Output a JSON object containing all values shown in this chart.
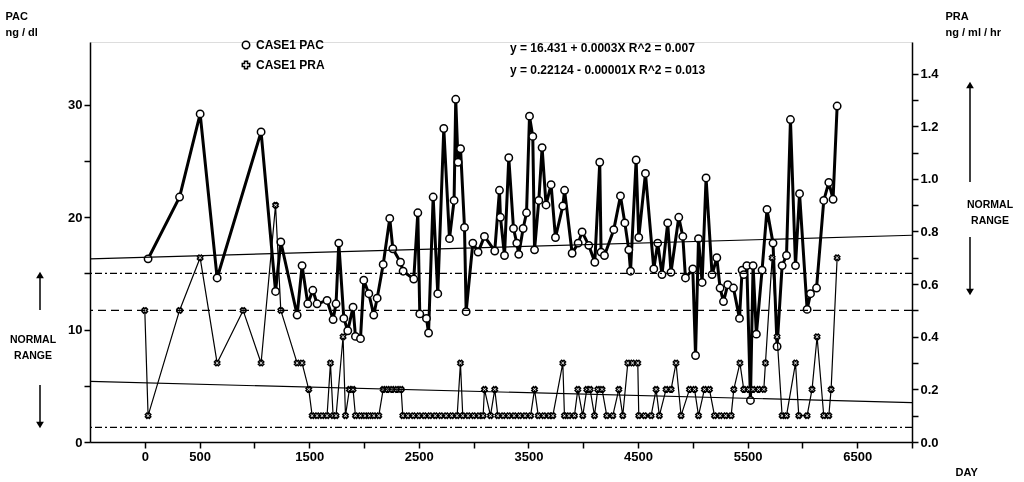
{
  "chart_data": {
    "type": "line",
    "xlabel": "DAY",
    "ylabel": "PAC\nng / dl",
    "y2label": "PRA\nng / ml / hr",
    "xlim": [
      -500,
      7000
    ],
    "xticks": [
      0,
      500,
      {
        "value": 1000,
        "label": null
      },
      1500,
      {
        "value": 2000,
        "label": null
      },
      2500,
      {
        "value": 3000,
        "label": null
      },
      3500,
      {
        "value": 4000,
        "label": null
      },
      4500,
      {
        "value": 5000,
        "label": null
      },
      5500,
      {
        "value": 6000,
        "label": null
      },
      6500,
      {
        "value": 7000,
        "label": null
      }
    ],
    "ylim": [
      0,
      35.6
    ],
    "yticks": [
      0,
      {
        "value": 5,
        "label": null
      },
      10,
      {
        "value": 15,
        "label": null
      },
      20,
      {
        "value": 25,
        "label": null
      },
      30
    ],
    "y2lim": [
      0,
      1.52
    ],
    "y2ticks": [
      {
        "value": 0,
        "label": "0.0"
      },
      {
        "value": 0.1,
        "label": null
      },
      {
        "value": 0.2,
        "label": "0.2"
      },
      {
        "value": 0.3,
        "label": null
      },
      {
        "value": 0.4,
        "label": "0.4"
      },
      {
        "value": 0.5,
        "label": null
      },
      {
        "value": 0.6,
        "label": "0.6"
      },
      {
        "value": 0.7,
        "label": null
      },
      {
        "value": 0.8,
        "label": "0.8"
      },
      {
        "value": 0.9,
        "label": null
      },
      {
        "value": 1.0,
        "label": "1.0"
      },
      {
        "value": 1.1,
        "label": null
      },
      {
        "value": 1.2,
        "label": "1.2"
      },
      {
        "value": 1.3,
        "label": null
      },
      {
        "value": 1.4,
        "label": "1.4"
      }
    ],
    "grid": false,
    "legend": "top left",
    "series": [
      {
        "name": "CASE1 PAC",
        "color": "#000000",
        "marker": "circle",
        "x": [
          30,
          317,
          505,
          660,
          1061,
          1193,
          1241,
          1390,
          1435,
          1487,
          1533,
          1572,
          1663,
          1718,
          1745,
          1770,
          1816,
          1852,
          1900,
          1922,
          1968,
          1998,
          2044,
          2089,
          2120,
          2175,
          2235,
          2263,
          2333,
          2357,
          2454,
          2491,
          2509,
          2570,
          2589,
          2631,
          2673,
          2728,
          2780,
          2822,
          2837,
          2858,
          2881,
          2917,
          2932,
          2993,
          3041,
          3099,
          3193,
          3236,
          3245,
          3282,
          3321,
          3364,
          3394,
          3412,
          3452,
          3483,
          3510,
          3540,
          3556,
          3595,
          3625,
          3661,
          3707,
          3747,
          3814,
          3830,
          3899,
          3954,
          3990,
          4051,
          4106,
          4151,
          4163,
          4194,
          4279,
          4340,
          4380,
          4416,
          4432,
          4483,
          4507,
          4568,
          4644,
          4680,
          4719,
          4771,
          4801,
          4872,
          4909,
          4933,
          5000,
          5025,
          5052,
          5085,
          5121,
          5176,
          5219,
          5249,
          5280,
          5319,
          5371,
          5426,
          5450,
          5465,
          5493,
          5526,
          5550,
          5580,
          5632,
          5677,
          5732,
          5769,
          5815,
          5855,
          5891,
          5937,
          5974,
          6043,
          6074,
          6129,
          6195,
          6241,
          6280,
          6317
        ],
        "values": [
          16.3,
          21.8,
          29.2,
          14.6,
          27.6,
          13.4,
          17.8,
          11.3,
          15.7,
          12.3,
          13.5,
          12.3,
          12.6,
          10.9,
          12.3,
          17.7,
          11.0,
          9.9,
          12.0,
          9.4,
          9.2,
          14.4,
          13.2,
          11.3,
          12.8,
          15.8,
          19.9,
          17.2,
          16.0,
          15.2,
          14.5,
          20.4,
          11.4,
          11.0,
          9.7,
          21.8,
          13.2,
          27.9,
          18.1,
          21.5,
          30.5,
          24.9,
          26.1,
          19.1,
          11.6,
          17.7,
          16.9,
          18.3,
          17.0,
          22.4,
          20.0,
          16.6,
          25.3,
          19.0,
          17.7,
          16.7,
          19.0,
          20.4,
          29.0,
          27.2,
          17.1,
          21.5,
          26.2,
          21.1,
          22.9,
          18.2,
          21.0,
          22.4,
          16.8,
          17.7,
          18.7,
          17.5,
          16.0,
          24.9,
          16.9,
          16.6,
          18.9,
          21.9,
          19.5,
          17.1,
          15.2,
          25.1,
          18.2,
          23.9,
          15.4,
          17.7,
          14.9,
          19.5,
          15.1,
          20.0,
          18.3,
          14.6,
          15.4,
          7.7,
          18.1,
          14.2,
          23.5,
          14.9,
          16.4,
          13.7,
          12.5,
          14.0,
          13.7,
          11.0,
          15.3,
          14.9,
          15.7,
          3.7,
          15.7,
          9.6,
          15.3,
          20.7,
          17.7,
          8.5,
          15.7,
          16.6,
          28.7,
          15.7,
          22.1,
          11.8,
          13.2,
          13.7,
          21.5,
          23.1,
          21.6,
          29.9
        ]
      },
      {
        "name": "CASE1 PRA",
        "color": "#000000",
        "marker": "cross",
        "axis": "y2",
        "x": [
          0,
          30,
          317,
          505,
          660,
          897,
          1061,
          1193,
          1241,
          1390,
          1435,
          1496,
          1527,
          1572,
          1618,
          1663,
          1694,
          1718,
          1745,
          1809,
          1831,
          1867,
          1900,
          1922,
          1968,
          2010,
          2050,
          2090,
          2135,
          2175,
          2215,
          2257,
          2300,
          2339,
          2354,
          2400,
          2450,
          2500,
          2550,
          2600,
          2650,
          2700,
          2750,
          2800,
          2850,
          2880,
          2901,
          2950,
          3000,
          3050,
          3087,
          3099,
          3154,
          3193,
          3221,
          3270,
          3320,
          3370,
          3420,
          3470,
          3520,
          3556,
          3590,
          3640,
          3690,
          3723,
          3814,
          3829,
          3870,
          3920,
          3951,
          3996,
          4033,
          4063,
          4103,
          4133,
          4172,
          4215,
          4270,
          4325,
          4361,
          4407,
          4450,
          4498,
          4507,
          4560,
          4620,
          4665,
          4695,
          4756,
          4802,
          4847,
          4893,
          4970,
          5016,
          5052,
          5106,
          5152,
          5198,
          5250,
          5300,
          5350,
          5374,
          5430,
          5465,
          5510,
          5550,
          5600,
          5648,
          5663,
          5724,
          5769,
          5815,
          5855,
          5937,
          5967,
          6043,
          6088,
          6134,
          6195,
          6241,
          6262,
          6317
        ],
        "values": [
          0.5,
          0.1,
          0.5,
          0.7,
          0.3,
          0.5,
          0.3,
          0.9,
          0.5,
          0.3,
          0.3,
          0.2,
          0.1,
          0.1,
          0.1,
          0.1,
          0.3,
          0.1,
          0.1,
          0.4,
          0.1,
          0.2,
          0.2,
          0.1,
          0.1,
          0.1,
          0.1,
          0.1,
          0.1,
          0.2,
          0.2,
          0.2,
          0.2,
          0.2,
          0.1,
          0.1,
          0.1,
          0.1,
          0.1,
          0.1,
          0.1,
          0.1,
          0.1,
          0.1,
          0.1,
          0.3,
          0.1,
          0.1,
          0.1,
          0.1,
          0.1,
          0.2,
          0.1,
          0.2,
          0.1,
          0.1,
          0.1,
          0.1,
          0.1,
          0.1,
          0.1,
          0.2,
          0.1,
          0.1,
          0.1,
          0.1,
          0.3,
          0.1,
          0.1,
          0.1,
          0.2,
          0.1,
          0.2,
          0.2,
          0.1,
          0.2,
          0.2,
          0.1,
          0.1,
          0.2,
          0.1,
          0.3,
          0.3,
          0.3,
          0.1,
          0.1,
          0.1,
          0.2,
          0.1,
          0.2,
          0.2,
          0.3,
          0.1,
          0.2,
          0.2,
          0.1,
          0.2,
          0.2,
          0.1,
          0.1,
          0.1,
          0.1,
          0.2,
          0.3,
          0.2,
          0.2,
          0.2,
          0.2,
          0.2,
          0.3,
          0.7,
          0.4,
          0.1,
          0.1,
          0.3,
          0.1,
          0.1,
          0.2,
          0.4,
          0.1,
          0.1,
          0.2,
          0.7
        ]
      },
      {
        "type": "line",
        "color": "#000000",
        "marker": "none",
        "x": [
          -500,
          7000
        ],
        "values": [
          16.3,
          18.4
        ]
      },
      {
        "type": "line",
        "color": "#000000",
        "marker": "none",
        "axis": "y2",
        "x": [
          -500,
          7000
        ],
        "values": [
          0.23,
          0.15
        ]
      }
    ],
    "ref_lines": [
      {
        "axis": "y",
        "value": 15,
        "line_style": "dotted"
      },
      {
        "axis": "y2",
        "value": 0.5,
        "line_style": "dashed"
      },
      {
        "axis": "y",
        "value": 1.3,
        "line_style": "dotted"
      }
    ],
    "annotations": [
      "y = 16.431 + 0.0003X  R^2 = 0.007",
      "y = 0.22124 - 0.00001X   R^2 = 0.013",
      "NORMAL\nRANGE",
      "NORMAL\nRANGE"
    ]
  }
}
